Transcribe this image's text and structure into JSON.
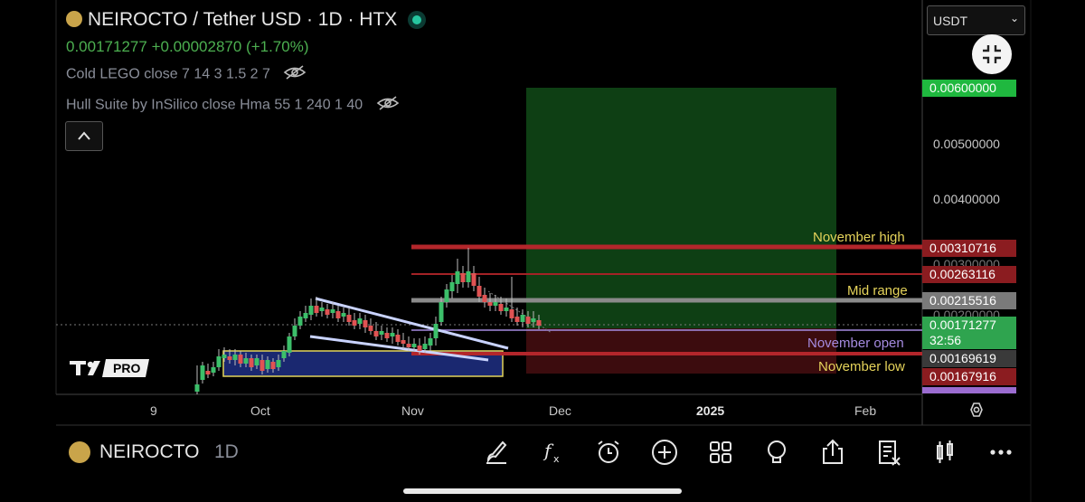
{
  "header": {
    "title": "NEIROCTO / Tether USD · 1D · HTX",
    "price": "0.00171277",
    "change": "+0.00002870 (+1.70%)",
    "indicators": [
      {
        "label": "Cold LEGO close 7 14 3 1.5 2 7"
      },
      {
        "label": "Hull Suite by InSilico close Hma 55 1 240 1 40"
      }
    ]
  },
  "currency_select": {
    "value": "USDT"
  },
  "price_axis": {
    "ticks": [
      "0.00500000",
      "0.00400000",
      "0.00300000",
      "0.00200000"
    ],
    "tags": [
      {
        "value": "0.00600000",
        "color": "#1fb83f"
      },
      {
        "value": "0.00310716",
        "color": "#8b1c20"
      },
      {
        "value": "0.00263116",
        "color": "#8b1c20"
      },
      {
        "value": "0.00215516",
        "color": "#7a7a7a"
      },
      {
        "value": "0.00171277",
        "color": "#2fa44f",
        "countdown": "32:56"
      },
      {
        "value": "0.00169619",
        "color": "#3a3a3a"
      },
      {
        "value": "0.00167916",
        "color": "#8b1c20"
      }
    ]
  },
  "levels": [
    {
      "label": "November high",
      "color": "#e5d35a"
    },
    {
      "label": "Mid range",
      "color": "#e5d35a"
    },
    {
      "label": "November open",
      "color": "#a58be0"
    },
    {
      "label": "November low",
      "color": "#e5d35a"
    }
  ],
  "time_axis": [
    "9",
    "Oct",
    "Nov",
    "Dec",
    "2025",
    "Feb"
  ],
  "watermark": "PRO",
  "toolbar": {
    "symbol": "NEIROCTO",
    "interval": "1D",
    "icons": [
      "brush-icon",
      "function-icon",
      "alarm-icon",
      "add-icon",
      "layout-icon",
      "ideas-icon",
      "share-icon",
      "watchlist-icon",
      "candles-icon",
      "more-icon"
    ]
  }
}
